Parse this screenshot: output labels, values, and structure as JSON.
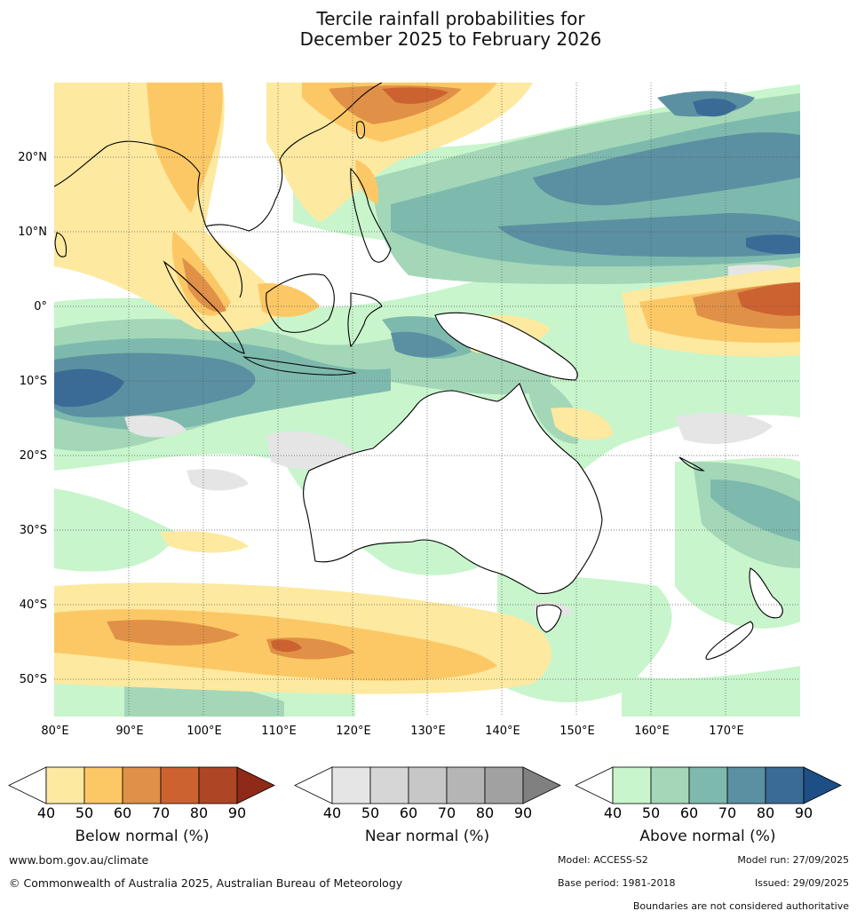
{
  "title": {
    "line1": "Tercile rainfall probabilities for",
    "line2": "December 2025 to February 2026"
  },
  "map": {
    "region": "Australia, Maritime Continent and western Pacific",
    "lon_labels": [
      "80°E",
      "90°E",
      "100°E",
      "110°E",
      "120°E",
      "130°E",
      "140°E",
      "150°E",
      "160°E",
      "170°E"
    ],
    "lat_labels": [
      "20°N",
      "10°N",
      "0°",
      "10°S",
      "20°S",
      "30°S",
      "40°S",
      "50°S"
    ],
    "lon_range": [
      80,
      180
    ],
    "lat_range": [
      -55,
      30
    ]
  },
  "colorbars": [
    {
      "label": "Below normal (%)",
      "ticks": [
        "40",
        "50",
        "60",
        "70",
        "80",
        "90"
      ],
      "colors": [
        "#ffffff",
        "#fde9a0",
        "#fcc866",
        "#e09147",
        "#cd6231",
        "#ae4525",
        "#8e2a17"
      ]
    },
    {
      "label": "Near normal (%)",
      "ticks": [
        "40",
        "50",
        "60",
        "70",
        "80",
        "90"
      ],
      "colors": [
        "#ffffff",
        "#e5e5e5",
        "#d6d6d6",
        "#c7c7c7",
        "#b5b5b5",
        "#a1a1a1",
        "#808080"
      ]
    },
    {
      "label": "Above normal (%)",
      "ticks": [
        "40",
        "50",
        "60",
        "70",
        "80",
        "90"
      ],
      "colors": [
        "#ffffff",
        "#c8f5cc",
        "#a3d7b8",
        "#7eb9ae",
        "#5b90a2",
        "#3a6b97",
        "#1d4e86"
      ]
    }
  ],
  "footer": {
    "website": "www.bom.gov.au/climate",
    "copyright": "© Commonwealth of Australia 2025, Australian Bureau of Meteorology",
    "model": "Model: ACCESS-S2",
    "model_run": "Model run: 27/09/2025",
    "base_period": "Base period: 1981-2018",
    "issued": "Issued: 29/09/2025",
    "disclaimer": "Boundaries are not considered authoritative"
  },
  "colors": {
    "below": "#fcc866",
    "near": "#d6d6d6",
    "above": "#a3d7b8"
  }
}
